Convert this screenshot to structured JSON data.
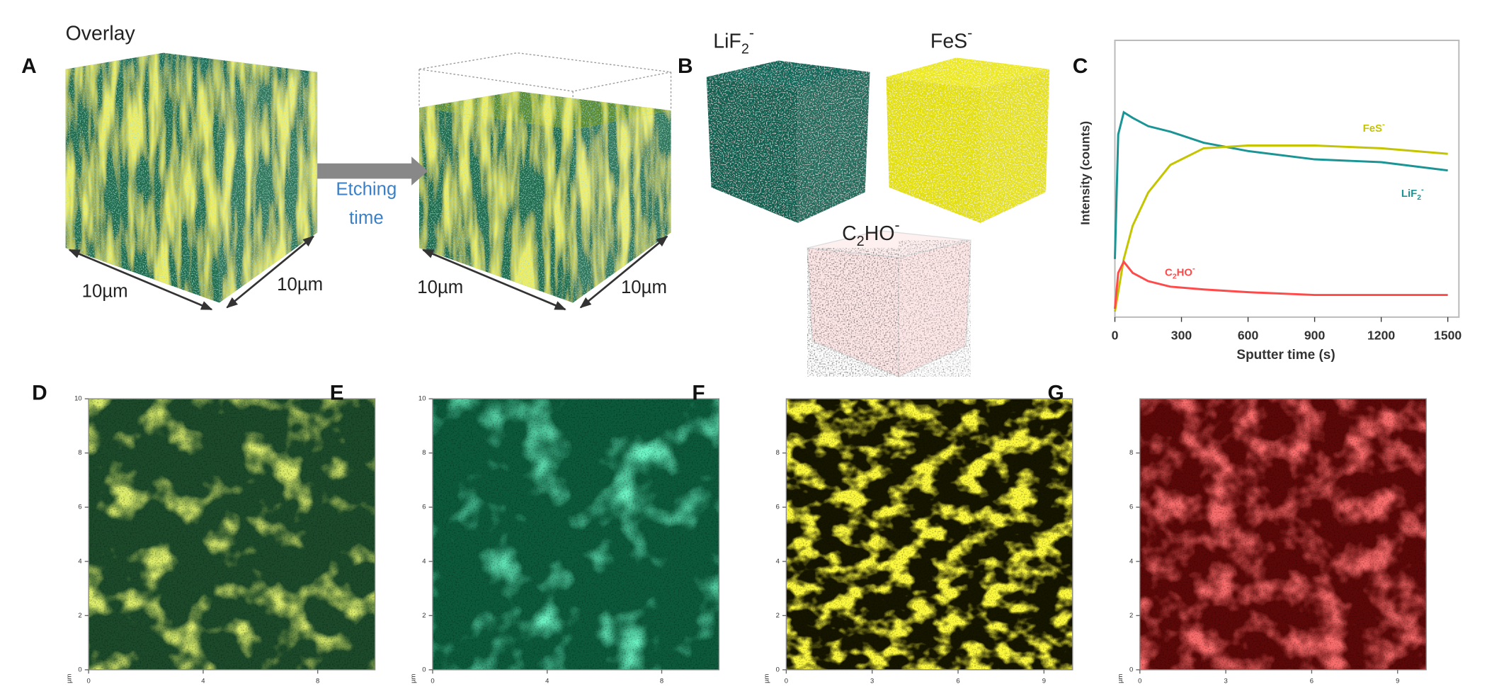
{
  "panel_a": {
    "letter": "A",
    "title": "Overlay",
    "arrow_label_lines": [
      "Etching",
      "time"
    ],
    "dimensions": [
      "10µm",
      "10µm",
      "10µm",
      "10µm"
    ]
  },
  "panel_b": {
    "letter": "B",
    "cube_labels": [
      "LiF2-",
      "FeS-",
      "C2HO-"
    ]
  },
  "panel_c": {
    "letter": "C",
    "type": "line",
    "xlabel": "Sputter time (s)",
    "ylabel": "Intensity (counts)",
    "x": [
      0,
      15,
      40,
      80,
      150,
      250,
      400,
      600,
      900,
      1200,
      1500
    ],
    "series": [
      {
        "name": "LiF2-",
        "color": "#1a9494",
        "values": [
          21,
          66,
          74,
          72,
          69,
          67,
          63,
          60,
          57,
          56,
          53
        ]
      },
      {
        "name": "FeS-",
        "color": "#c4c400",
        "values": [
          2,
          9,
          21,
          33,
          45,
          55,
          61,
          62,
          62,
          61,
          59
        ]
      },
      {
        "name": "C2HO-",
        "color": "#ff4a4a",
        "values": [
          3,
          16,
          20,
          16,
          13,
          11,
          10,
          9,
          8,
          8,
          8
        ]
      }
    ],
    "xlim": [
      0,
      1550
    ],
    "ylim": [
      0,
      100
    ],
    "xticks": [
      0,
      300,
      600,
      900,
      1200,
      1500
    ]
  },
  "maps": [
    {
      "letter": "D",
      "unit": "µm",
      "xlim": [
        0,
        10
      ],
      "ylim": [
        0,
        10
      ],
      "xticks": [
        0,
        4,
        8
      ],
      "yticks": [
        0,
        2,
        4,
        6,
        8,
        10
      ]
    },
    {
      "letter": "E",
      "unit": "µm",
      "xlim": [
        0,
        10
      ],
      "ylim": [
        0,
        10
      ],
      "xticks": [
        0,
        4,
        8
      ],
      "yticks": [
        0,
        2,
        4,
        6,
        8,
        10
      ]
    },
    {
      "letter": "F",
      "unit": "µm",
      "xlim": [
        0,
        10
      ],
      "ylim": [
        0,
        10
      ],
      "xticks": [
        0,
        3,
        6,
        9
      ],
      "yticks": [
        0,
        2,
        4,
        6,
        8
      ]
    },
    {
      "letter": "G",
      "unit": "µm",
      "xlim": [
        0,
        10
      ],
      "ylim": [
        0,
        10
      ],
      "xticks": [
        0,
        3,
        6,
        9
      ],
      "yticks": [
        0,
        2,
        4,
        6,
        8
      ]
    }
  ]
}
